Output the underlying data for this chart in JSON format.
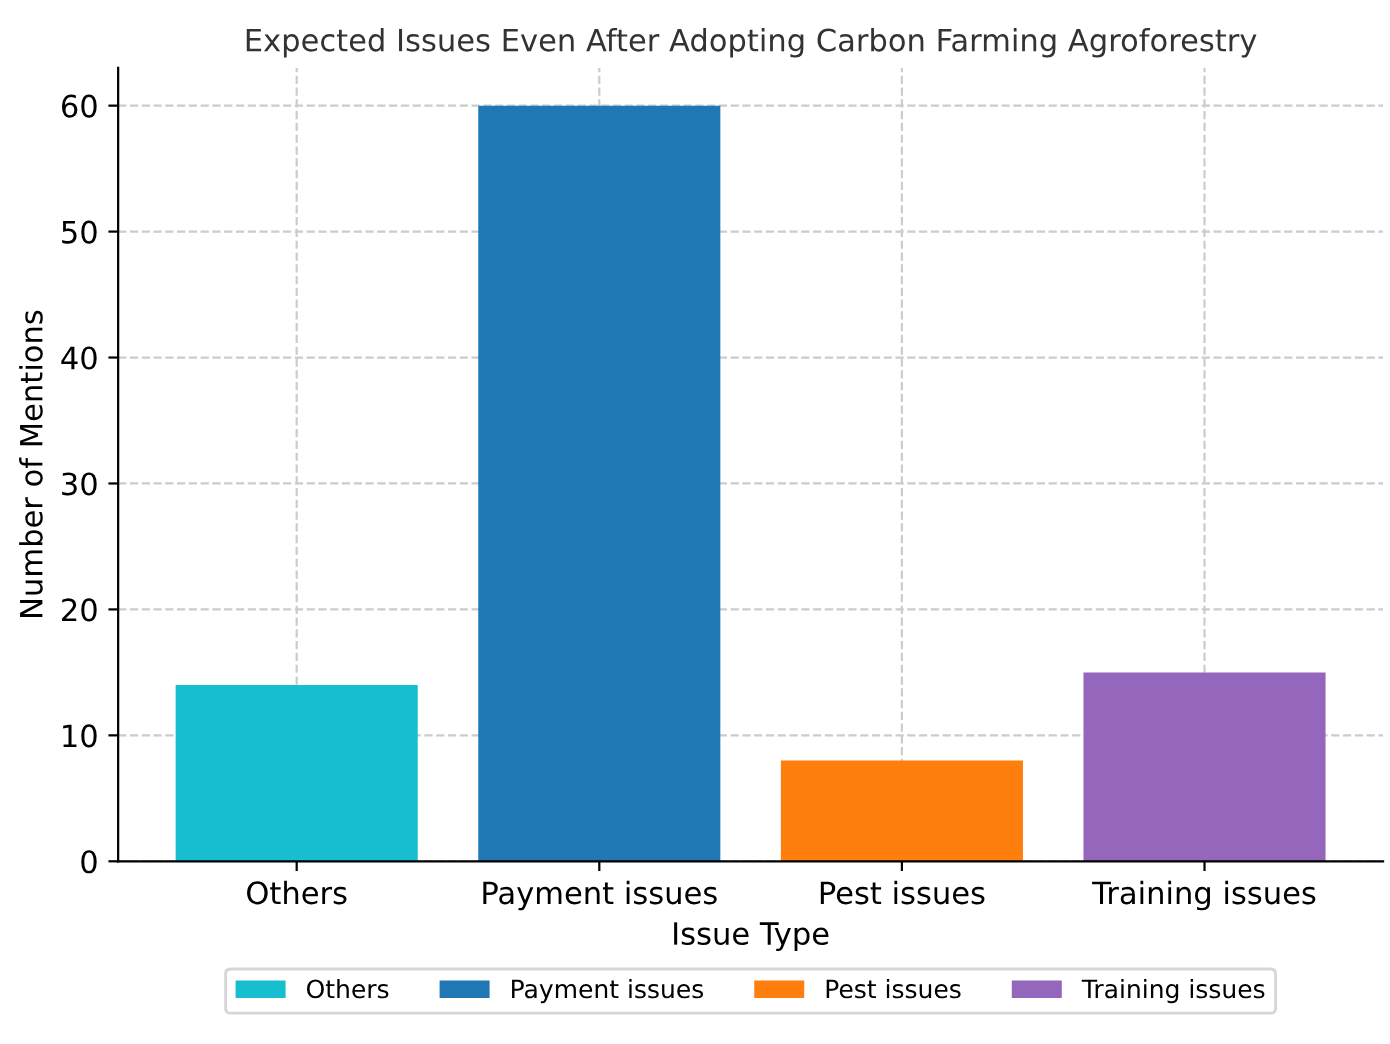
{
  "chart_data": {
    "type": "bar",
    "title": "Expected Issues Even After Adopting Carbon Farming Agroforestry",
    "xlabel": "Issue Type",
    "ylabel": "Number of Mentions",
    "categories": [
      "Others",
      "Payment issues",
      "Pest issues",
      "Training issues"
    ],
    "series": [
      {
        "name": "Others",
        "color": "#17becf",
        "values": [
          14,
          null,
          null,
          null
        ]
      },
      {
        "name": "Payment issues",
        "color": "#1f77b4",
        "values": [
          null,
          60,
          null,
          null
        ]
      },
      {
        "name": "Pest issues",
        "color": "#ff7f0e",
        "values": [
          null,
          null,
          8,
          null
        ]
      },
      {
        "name": "Training issues",
        "color": "#9467bd",
        "values": [
          null,
          null,
          null,
          15
        ]
      }
    ],
    "ylim": [
      0,
      63
    ],
    "yticks": [
      0,
      10,
      20,
      30,
      40,
      50,
      60
    ],
    "grid": true,
    "legend": "bottom"
  }
}
